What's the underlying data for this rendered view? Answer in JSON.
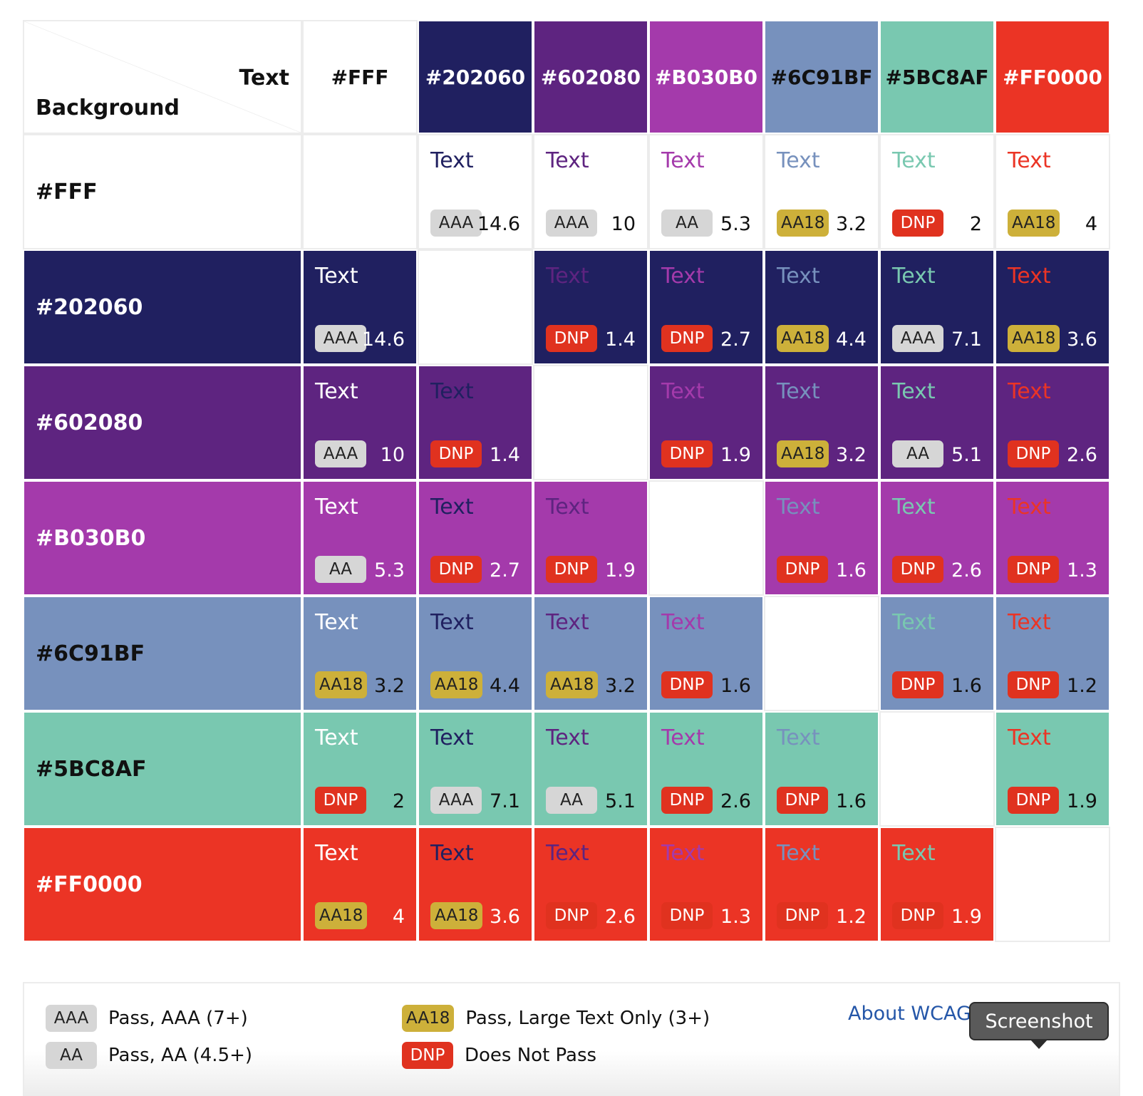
{
  "header": {
    "text_axis_label": "Text",
    "background_axis_label": "Background"
  },
  "colors": [
    {
      "label": "#FFF",
      "hex": "#ffffff",
      "fg": "#111111"
    },
    {
      "label": "#202060",
      "hex": "#202060",
      "fg": "#ffffff"
    },
    {
      "label": "#602080",
      "hex": "#5e2480",
      "fg": "#ffffff"
    },
    {
      "label": "#B030B0",
      "hex": "#a43aab",
      "fg": "#ffffff"
    },
    {
      "label": "#6C91BF",
      "hex": "#7791bd",
      "fg": "#111111"
    },
    {
      "label": "#5BC8AF",
      "hex": "#79c8b0",
      "fg": "#111111"
    },
    {
      "label": "#FF0000",
      "hex": "#eb3425",
      "fg": "#ffffff"
    }
  ],
  "sample_text": "Text",
  "rating_styles": {
    "AAA": {
      "bg": "#d6d6d6",
      "fg": "#222222"
    },
    "AA": {
      "bg": "#d6d6d6",
      "fg": "#222222"
    },
    "AA18": {
      "bg": "#cdb03a",
      "fg": "#222222"
    },
    "DNP": {
      "bg": "#e0321f",
      "fg": "#ffffff"
    }
  },
  "matrix": [
    [
      null,
      {
        "rating": "AAA",
        "ratio": "14.6"
      },
      {
        "rating": "AAA",
        "ratio": "10"
      },
      {
        "rating": "AA",
        "ratio": "5.3"
      },
      {
        "rating": "AA18",
        "ratio": "3.2"
      },
      {
        "rating": "DNP",
        "ratio": "2"
      },
      {
        "rating": "AA18",
        "ratio": "4"
      }
    ],
    [
      {
        "rating": "AAA",
        "ratio": "14.6"
      },
      null,
      {
        "rating": "DNP",
        "ratio": "1.4"
      },
      {
        "rating": "DNP",
        "ratio": "2.7"
      },
      {
        "rating": "AA18",
        "ratio": "4.4"
      },
      {
        "rating": "AAA",
        "ratio": "7.1"
      },
      {
        "rating": "AA18",
        "ratio": "3.6"
      }
    ],
    [
      {
        "rating": "AAA",
        "ratio": "10"
      },
      {
        "rating": "DNP",
        "ratio": "1.4"
      },
      null,
      {
        "rating": "DNP",
        "ratio": "1.9"
      },
      {
        "rating": "AA18",
        "ratio": "3.2"
      },
      {
        "rating": "AA",
        "ratio": "5.1"
      },
      {
        "rating": "DNP",
        "ratio": "2.6"
      }
    ],
    [
      {
        "rating": "AA",
        "ratio": "5.3"
      },
      {
        "rating": "DNP",
        "ratio": "2.7"
      },
      {
        "rating": "DNP",
        "ratio": "1.9"
      },
      null,
      {
        "rating": "DNP",
        "ratio": "1.6"
      },
      {
        "rating": "DNP",
        "ratio": "2.6"
      },
      {
        "rating": "DNP",
        "ratio": "1.3"
      }
    ],
    [
      {
        "rating": "AA18",
        "ratio": "3.2"
      },
      {
        "rating": "AA18",
        "ratio": "4.4"
      },
      {
        "rating": "AA18",
        "ratio": "3.2"
      },
      {
        "rating": "DNP",
        "ratio": "1.6"
      },
      null,
      {
        "rating": "DNP",
        "ratio": "1.6"
      },
      {
        "rating": "DNP",
        "ratio": "1.2"
      }
    ],
    [
      {
        "rating": "DNP",
        "ratio": "2"
      },
      {
        "rating": "AAA",
        "ratio": "7.1"
      },
      {
        "rating": "AA",
        "ratio": "5.1"
      },
      {
        "rating": "DNP",
        "ratio": "2.6"
      },
      {
        "rating": "DNP",
        "ratio": "1.6"
      },
      null,
      {
        "rating": "DNP",
        "ratio": "1.9"
      }
    ],
    [
      {
        "rating": "AA18",
        "ratio": "4"
      },
      {
        "rating": "AA18",
        "ratio": "3.6"
      },
      {
        "rating": "DNP",
        "ratio": "2.6"
      },
      {
        "rating": "DNP",
        "ratio": "1.3"
      },
      {
        "rating": "DNP",
        "ratio": "1.2"
      },
      {
        "rating": "DNP",
        "ratio": "1.9"
      },
      null
    ]
  ],
  "legend": {
    "aaa": {
      "badge": "AAA",
      "desc": "Pass, AAA (7+)"
    },
    "aa": {
      "badge": "AA",
      "desc": "Pass, AA (4.5+)"
    },
    "aa18": {
      "badge": "AA18",
      "desc": "Pass, Large Text Only (3+)"
    },
    "dnp": {
      "badge": "DNP",
      "desc": "Does Not Pass"
    }
  },
  "about_link": "About WCAG",
  "screenshot_button": "Screenshot"
}
